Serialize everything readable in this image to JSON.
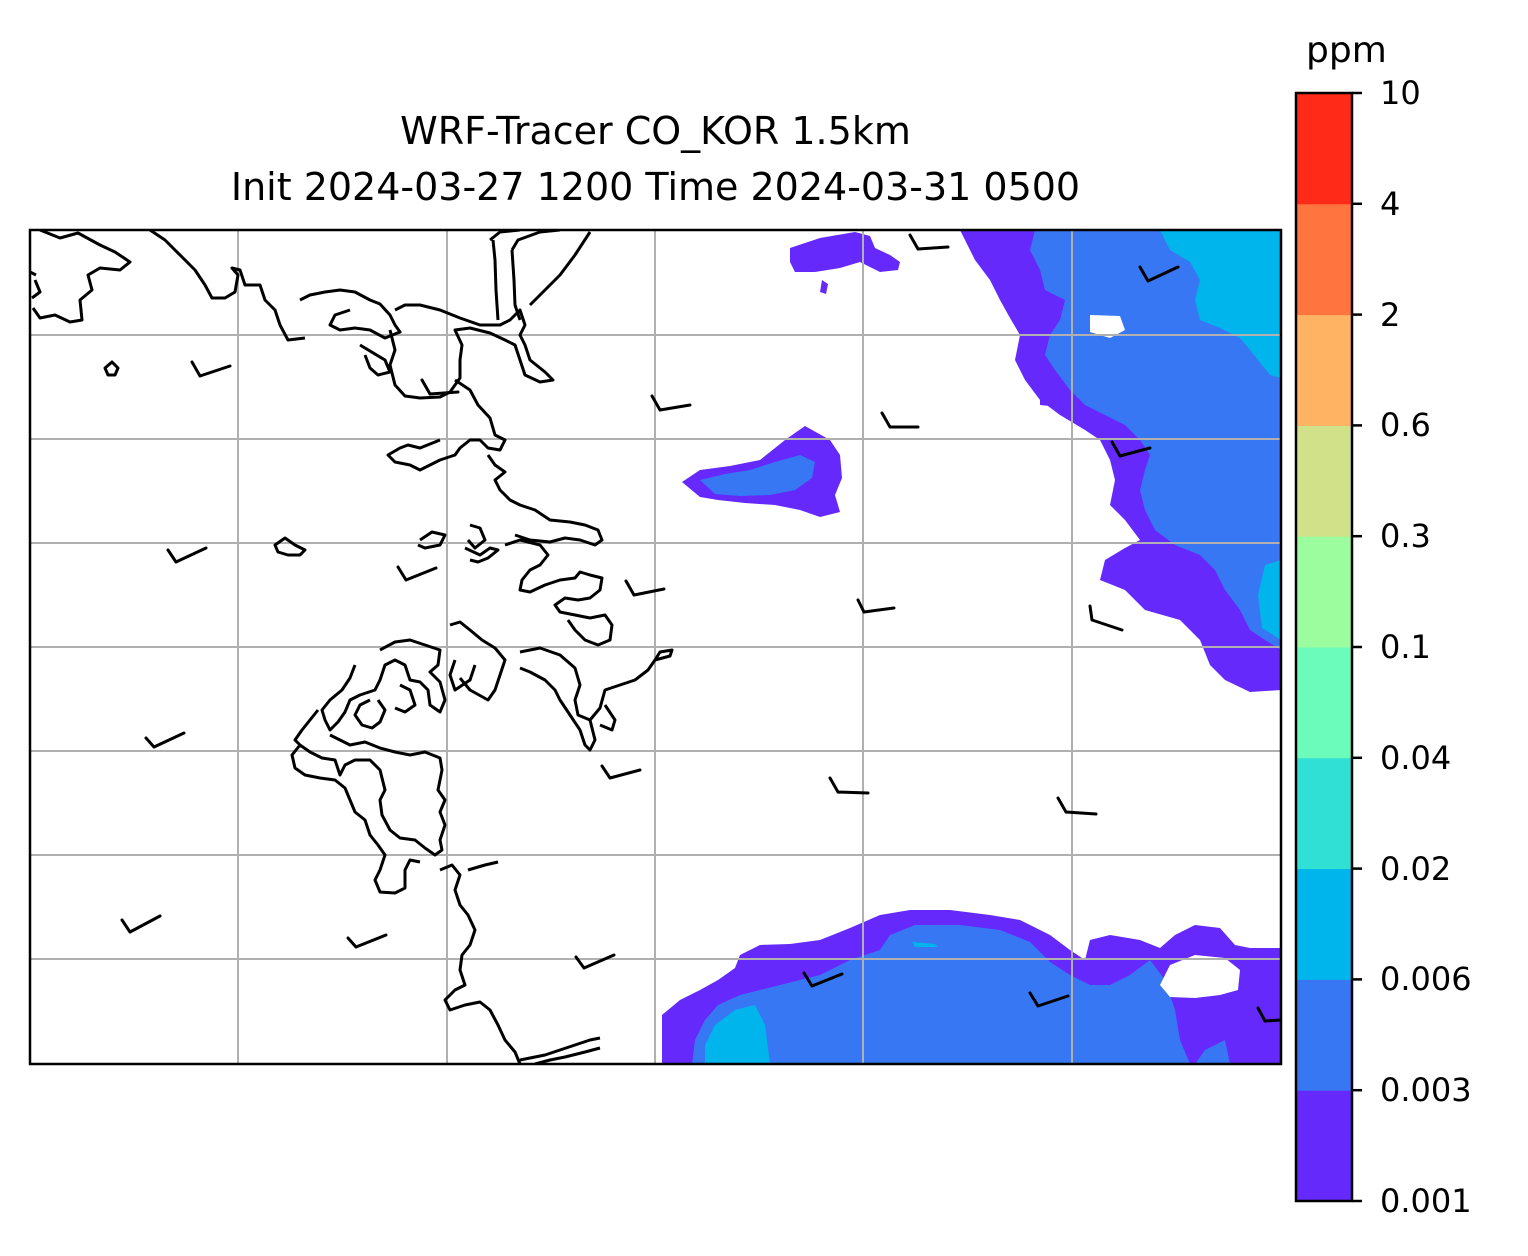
{
  "figure": {
    "title": "WRF-Tracer CO_KOR 1.5km",
    "subtitle": "Init 2024-03-27 1200 Time 2024-03-31 0500"
  },
  "colorbar": {
    "unit": "ppm",
    "levels": [
      "0.001",
      "0.003",
      "0.006",
      "0.02",
      "0.04",
      "0.1",
      "0.3",
      "0.6",
      "2",
      "4",
      "10"
    ],
    "colors": [
      "#6529fb",
      "#3877f3",
      "#00b4ec",
      "#31e0d4",
      "#6bfcbb",
      "#9cfd9f",
      "#d0e18a",
      "#ffb363",
      "#ff743f",
      "#ff2a17"
    ]
  },
  "map": {
    "variable": "CO tracer concentration",
    "overlays": [
      "coastline",
      "lat-lon-gridlines",
      "wind-barbs"
    ],
    "gridline_color": "#b0b0b0",
    "coastline_color": "#000000",
    "barb_color": "#000000",
    "wind_barbs_count": 26
  }
}
